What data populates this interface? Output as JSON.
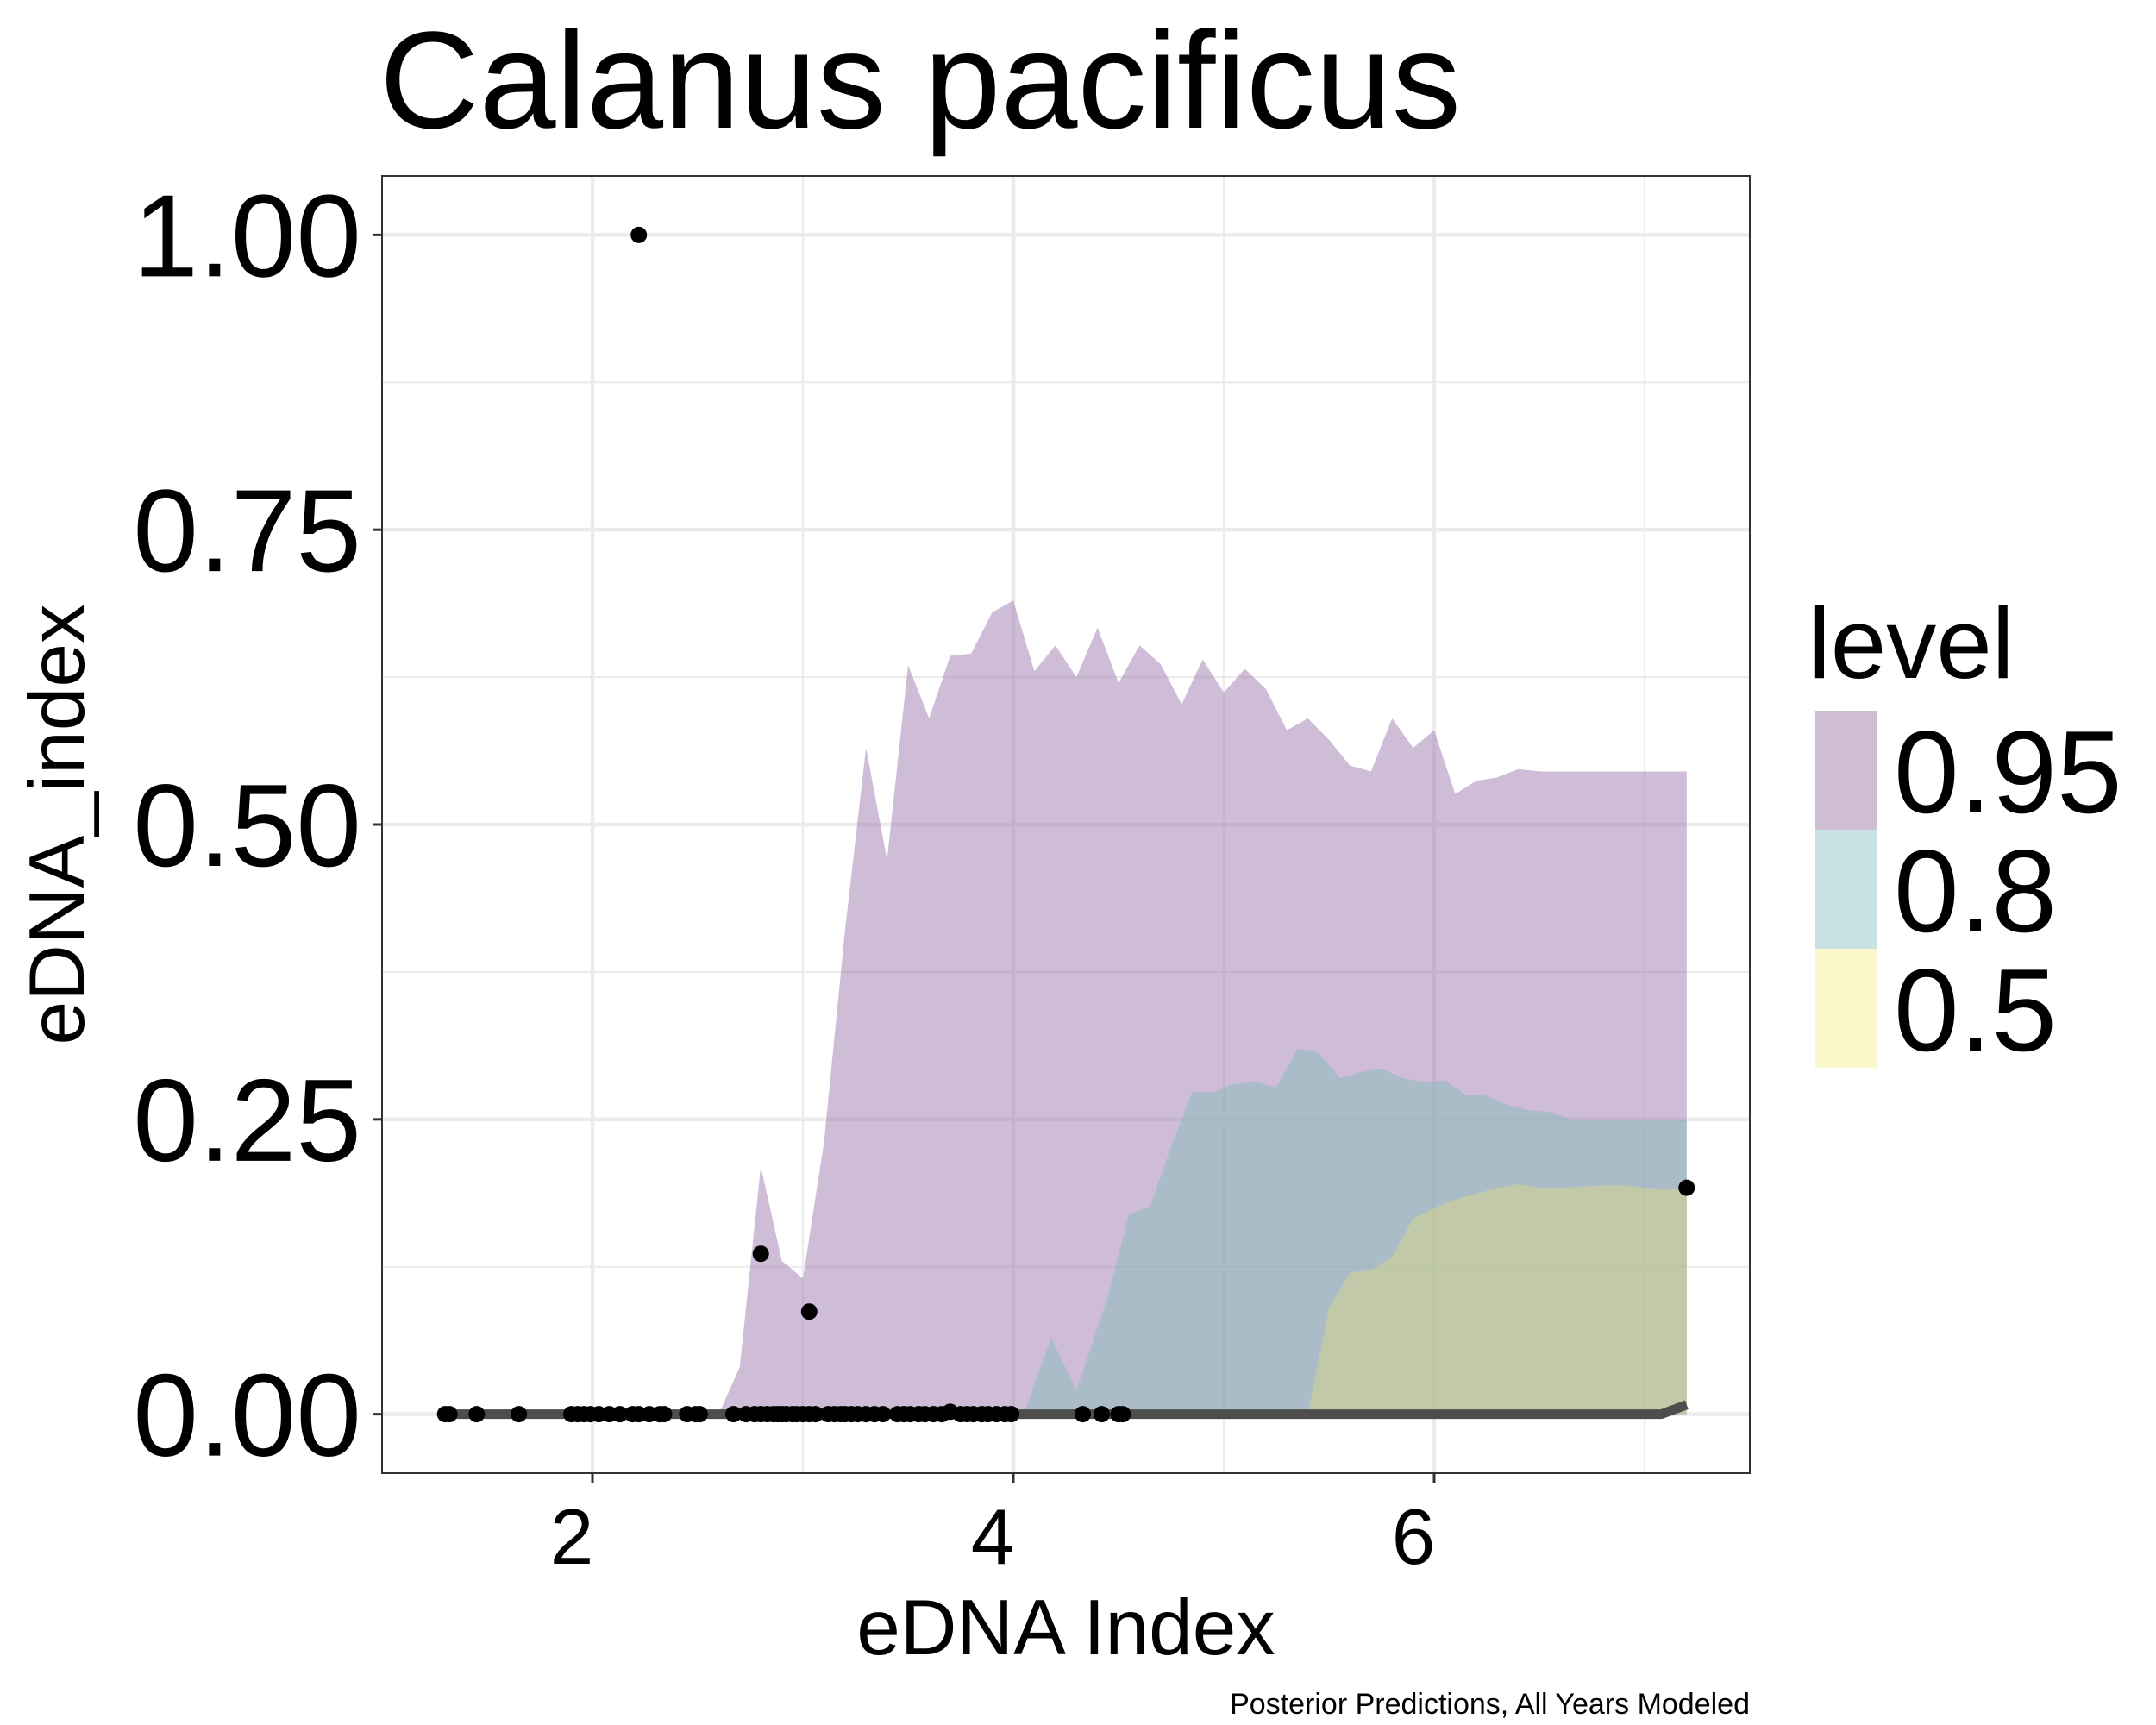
{
  "chart_data": {
    "type": "area",
    "title": "Calanus pacificus",
    "xlabel": "eDNA Index",
    "ylabel": "eDNA_index",
    "caption": "Posterior Predictions, All Years Modeled",
    "xlim": [
      1.0,
      7.5
    ],
    "ylim": [
      -0.05,
      1.05
    ],
    "x_ticks": [
      2,
      4,
      6
    ],
    "x_tick_labels": [
      "2",
      "4",
      "6"
    ],
    "x_minor_ticks": [
      3,
      5,
      7
    ],
    "y_ticks": [
      0.0,
      0.25,
      0.5,
      0.75,
      1.0
    ],
    "y_tick_labels": [
      "0.00",
      "0.25",
      "0.50",
      "0.75",
      "1.00"
    ],
    "y_minor_ticks": [
      0.125,
      0.375,
      0.625,
      0.875
    ],
    "grid": true,
    "legend": {
      "title": "level",
      "position": "right",
      "entries": [
        {
          "label": "0.95",
          "color": "#cfbdd4"
        },
        {
          "label": "0.8",
          "color": "#c8e3e1"
        },
        {
          "label": "0.5",
          "color": "#fbf9cb"
        }
      ]
    },
    "series": [
      {
        "name": "0.95",
        "kind": "ribbon",
        "fill": "#a07ab0",
        "opacity": 0.5,
        "x": [
          2.5,
          2.6,
          2.7,
          2.8,
          2.9,
          3.0,
          3.1,
          3.2,
          3.3,
          3.4,
          3.5,
          3.6,
          3.7,
          3.8,
          3.9,
          4.0,
          4.1,
          4.2,
          4.3,
          4.4,
          4.5,
          4.6,
          4.7,
          4.8,
          4.9,
          5.0,
          5.1,
          5.2,
          5.3,
          5.4,
          5.5,
          5.6,
          5.7,
          5.8,
          5.9,
          6.0,
          6.1,
          6.2,
          6.3,
          6.4,
          6.5,
          6.6,
          6.7,
          6.8,
          6.9,
          7.0,
          7.1,
          7.2
        ],
        "upper": [
          0.0,
          0.0,
          0.04,
          0.21,
          0.13,
          0.115,
          0.23,
          0.41,
          0.565,
          0.47,
          0.635,
          0.59,
          0.643,
          0.645,
          0.68,
          0.69,
          0.63,
          0.652,
          0.625,
          0.667,
          0.62,
          0.652,
          0.636,
          0.602,
          0.64,
          0.612,
          0.632,
          0.615,
          0.58,
          0.59,
          0.572,
          0.55,
          0.545,
          0.59,
          0.565,
          0.58,
          0.526,
          0.537,
          0.54,
          0.547,
          0.545,
          0.545,
          0.545,
          0.545,
          0.545,
          0.545,
          0.545,
          0.545
        ],
        "lower": [
          0,
          0,
          0,
          0,
          0,
          0,
          0,
          0,
          0,
          0,
          0,
          0,
          0,
          0,
          0,
          0,
          0,
          0,
          0,
          0,
          0,
          0,
          0,
          0,
          0,
          0,
          0,
          0,
          0,
          0,
          0,
          0,
          0,
          0,
          0,
          0,
          0,
          0,
          0,
          0,
          0,
          0,
          0,
          0,
          0,
          0,
          0,
          0
        ]
      },
      {
        "name": "0.8",
        "kind": "ribbon",
        "fill": "#7fbcb8",
        "opacity": 0.45,
        "x": [
          4.05,
          4.18,
          4.3,
          4.45,
          4.55,
          4.65,
          4.75,
          4.85,
          4.95,
          5.05,
          5.15,
          5.25,
          5.35,
          5.45,
          5.55,
          5.65,
          5.75,
          5.85,
          5.95,
          6.05,
          6.15,
          6.25,
          6.35,
          6.45,
          6.55,
          6.65,
          6.75,
          6.85,
          6.95,
          7.05,
          7.2
        ],
        "upper": [
          0.0,
          0.065,
          0.02,
          0.1,
          0.17,
          0.176,
          0.227,
          0.273,
          0.273,
          0.28,
          0.282,
          0.277,
          0.31,
          0.307,
          0.285,
          0.29,
          0.293,
          0.285,
          0.282,
          0.283,
          0.271,
          0.27,
          0.262,
          0.258,
          0.256,
          0.25,
          0.25,
          0.25,
          0.25,
          0.25,
          0.25
        ],
        "lower": [
          0,
          0,
          0,
          0,
          0,
          0,
          0,
          0,
          0,
          0,
          0,
          0,
          0,
          0,
          0,
          0,
          0,
          0,
          0,
          0,
          0,
          0,
          0,
          0,
          0,
          0,
          0,
          0,
          0,
          0,
          0
        ]
      },
      {
        "name": "0.5",
        "kind": "ribbon",
        "fill": "#eae26b",
        "opacity": 0.35,
        "x": [
          5.4,
          5.5,
          5.6,
          5.7,
          5.8,
          5.9,
          6.0,
          6.1,
          6.2,
          6.3,
          6.4,
          6.5,
          6.6,
          6.7,
          6.8,
          6.9,
          7.0,
          7.1,
          7.2
        ],
        "upper": [
          0.0,
          0.09,
          0.12,
          0.122,
          0.133,
          0.166,
          0.175,
          0.182,
          0.187,
          0.192,
          0.195,
          0.192,
          0.192,
          0.193,
          0.194,
          0.194,
          0.192,
          0.191,
          0.19
        ],
        "lower": [
          0,
          0,
          0,
          0,
          0,
          0,
          0,
          0,
          0,
          0,
          0,
          0,
          0,
          0,
          0,
          0,
          0,
          0,
          0
        ]
      },
      {
        "name": "median",
        "kind": "line",
        "stroke": "#4d4d4d",
        "x": [
          1.3,
          6.5,
          7.0,
          7.08,
          7.2
        ],
        "y": [
          0.0,
          0.0,
          0.0,
          0.0,
          0.008
        ]
      },
      {
        "name": "observed",
        "kind": "points",
        "color": "#000000",
        "points": [
          [
            1.3,
            0.0
          ],
          [
            1.32,
            0.0
          ],
          [
            1.45,
            0.0
          ],
          [
            1.65,
            0.0
          ],
          [
            1.9,
            0.0
          ],
          [
            1.93,
            0.0
          ],
          [
            1.96,
            0.0
          ],
          [
            1.99,
            0.0
          ],
          [
            2.03,
            0.0
          ],
          [
            2.08,
            0.0
          ],
          [
            2.13,
            0.0
          ],
          [
            2.19,
            0.0
          ],
          [
            2.22,
            0.0
          ],
          [
            2.27,
            0.0
          ],
          [
            2.32,
            0.0
          ],
          [
            2.34,
            0.0
          ],
          [
            2.45,
            0.0
          ],
          [
            2.49,
            0.0
          ],
          [
            2.51,
            0.0
          ],
          [
            2.67,
            0.0
          ],
          [
            2.73,
            0.0
          ],
          [
            2.77,
            0.0
          ],
          [
            2.8,
            0.0
          ],
          [
            2.83,
            0.0
          ],
          [
            2.86,
            0.0
          ],
          [
            2.88,
            0.0
          ],
          [
            2.9,
            0.0
          ],
          [
            2.92,
            0.0
          ],
          [
            2.95,
            0.0
          ],
          [
            2.97,
            0.0
          ],
          [
            3.0,
            0.0
          ],
          [
            3.03,
            0.0
          ],
          [
            3.06,
            0.0
          ],
          [
            3.12,
            0.0
          ],
          [
            3.15,
            0.0
          ],
          [
            3.18,
            0.0
          ],
          [
            3.2,
            0.0
          ],
          [
            3.23,
            0.0
          ],
          [
            3.26,
            0.0
          ],
          [
            3.3,
            0.0
          ],
          [
            3.34,
            0.0
          ],
          [
            3.38,
            0.0
          ],
          [
            3.45,
            0.0
          ],
          [
            3.48,
            0.0
          ],
          [
            3.51,
            0.0
          ],
          [
            3.55,
            0.0
          ],
          [
            3.58,
            0.0
          ],
          [
            3.62,
            0.0
          ],
          [
            3.66,
            0.0
          ],
          [
            3.7,
            0.002
          ],
          [
            3.75,
            0.0
          ],
          [
            3.78,
            0.0
          ],
          [
            3.81,
            0.0
          ],
          [
            3.85,
            0.0
          ],
          [
            3.88,
            0.0
          ],
          [
            3.92,
            0.0
          ],
          [
            3.96,
            0.0
          ],
          [
            3.99,
            0.0
          ],
          [
            4.33,
            0.0
          ],
          [
            4.42,
            0.0
          ],
          [
            4.5,
            0.0
          ],
          [
            4.52,
            0.0
          ],
          [
            2.22,
            1.0
          ],
          [
            2.8,
            0.136
          ],
          [
            3.03,
            0.087
          ],
          [
            7.2,
            0.192
          ]
        ]
      }
    ]
  }
}
